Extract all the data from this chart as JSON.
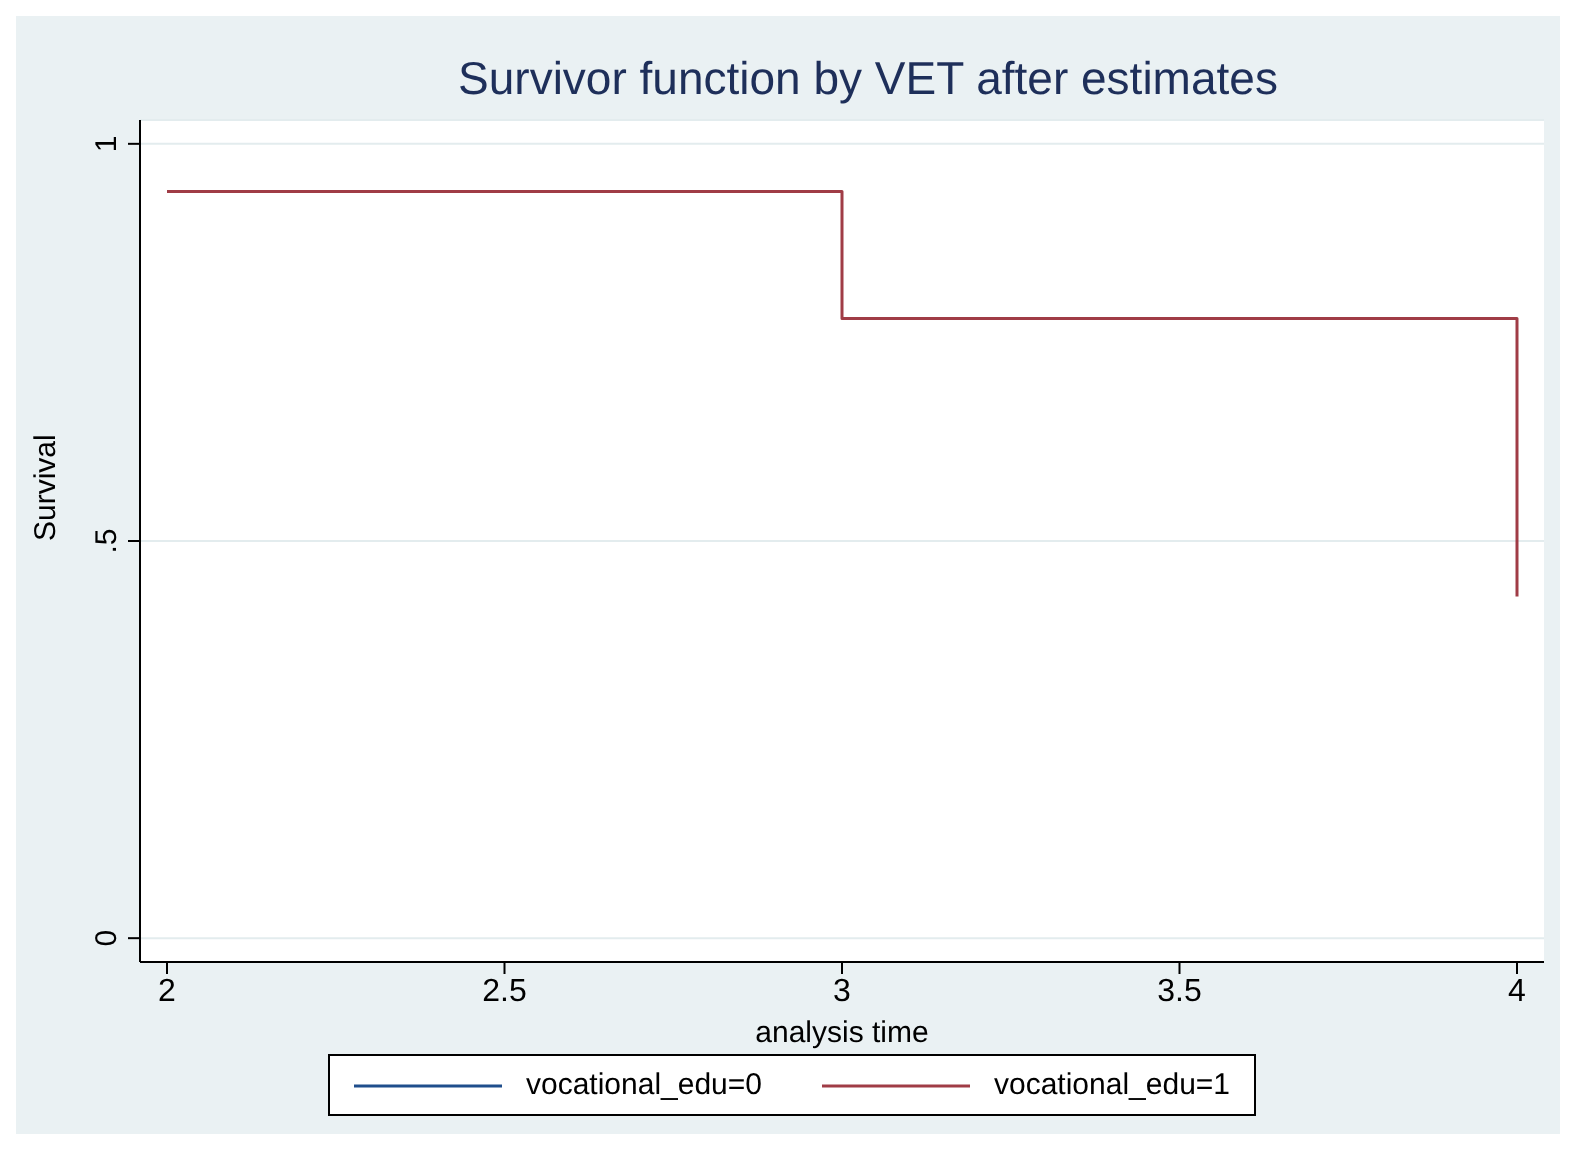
{
  "chart_data": {
    "type": "step",
    "title": "Survivor function by VET after estimates",
    "xlabel": "analysis time",
    "ylabel": "Survival",
    "series": [
      {
        "name": "vocational_edu=0",
        "color": "#1f4e8c"
      },
      {
        "name": "vocational_edu=1",
        "color": "#a03c46",
        "x": [
          2,
          3,
          4
        ],
        "values": [
          0.94,
          0.78,
          0.43
        ]
      }
    ],
    "xlim": [
      1.96,
      4.04
    ],
    "xticks": [
      2,
      2.5,
      3,
      3.5,
      4
    ],
    "ylim": [
      -0.03,
      1.03
    ],
    "yticks": [
      0,
      {
        "value": 0.5,
        "label": ".5"
      },
      1
    ],
    "grid": "y",
    "legend": "bottom",
    "marker": "none",
    "line_style": "solid"
  }
}
